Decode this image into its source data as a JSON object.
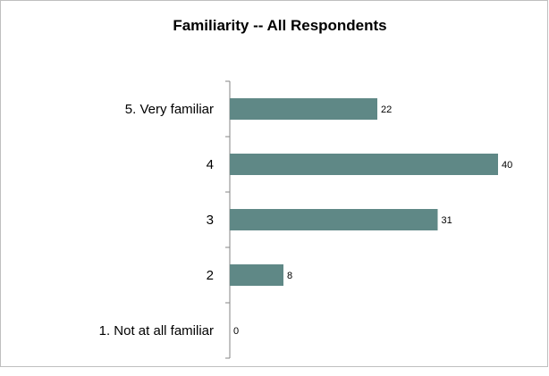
{
  "chart_data": {
    "type": "bar",
    "orientation": "horizontal",
    "title": "Familiarity -- All Respondents",
    "categories": [
      "5. Very familiar",
      "4",
      "3",
      "2",
      "1. Not at all familiar"
    ],
    "values": [
      22,
      40,
      31,
      8,
      0
    ],
    "data_labels": [
      "22",
      "40",
      "31",
      "8",
      "0"
    ],
    "xlim": [
      0,
      40
    ],
    "grid": false,
    "legend": "none",
    "bar_color": "#5f8886",
    "axis_color": "#868686"
  }
}
